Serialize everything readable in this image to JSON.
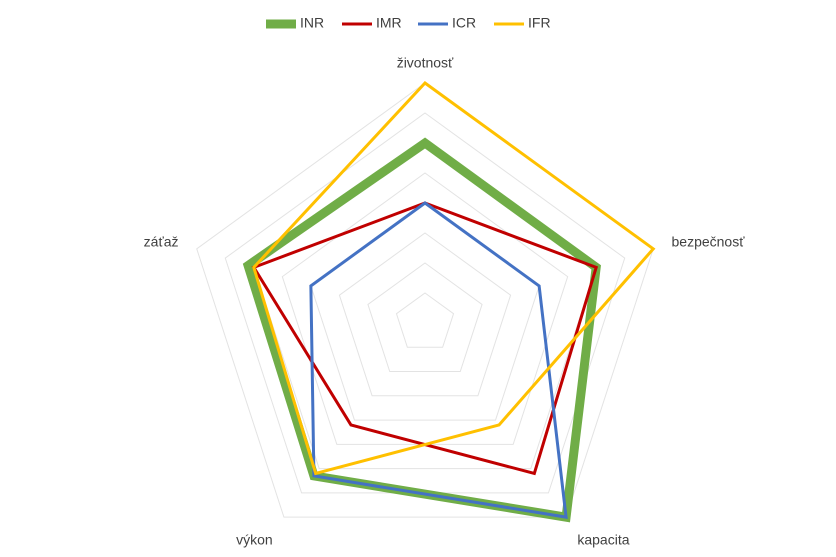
{
  "chart_data": {
    "type": "radar",
    "categories": [
      "životnosť",
      "bezpečnosť",
      "kapacita",
      "výkon",
      "záťaž"
    ],
    "series": [
      {
        "name": "INR",
        "color": "#70ad47",
        "values": [
          6,
          6,
          8,
          6.3,
          6.2
        ]
      },
      {
        "name": "IMR",
        "color": "#c00000",
        "values": [
          4,
          6,
          6.2,
          4.2,
          6
        ]
      },
      {
        "name": "ICR",
        "color": "#4472c4",
        "values": [
          4,
          4,
          8,
          6.3,
          4
        ]
      },
      {
        "name": "IFR",
        "color": "#ffc000",
        "values": [
          8,
          8,
          4.2,
          6.2,
          6
        ]
      }
    ],
    "ylim": [
      0,
      8
    ],
    "yticks": [
      1,
      2,
      3,
      4,
      5,
      6,
      7,
      8
    ],
    "grid": true,
    "legend": "top"
  }
}
